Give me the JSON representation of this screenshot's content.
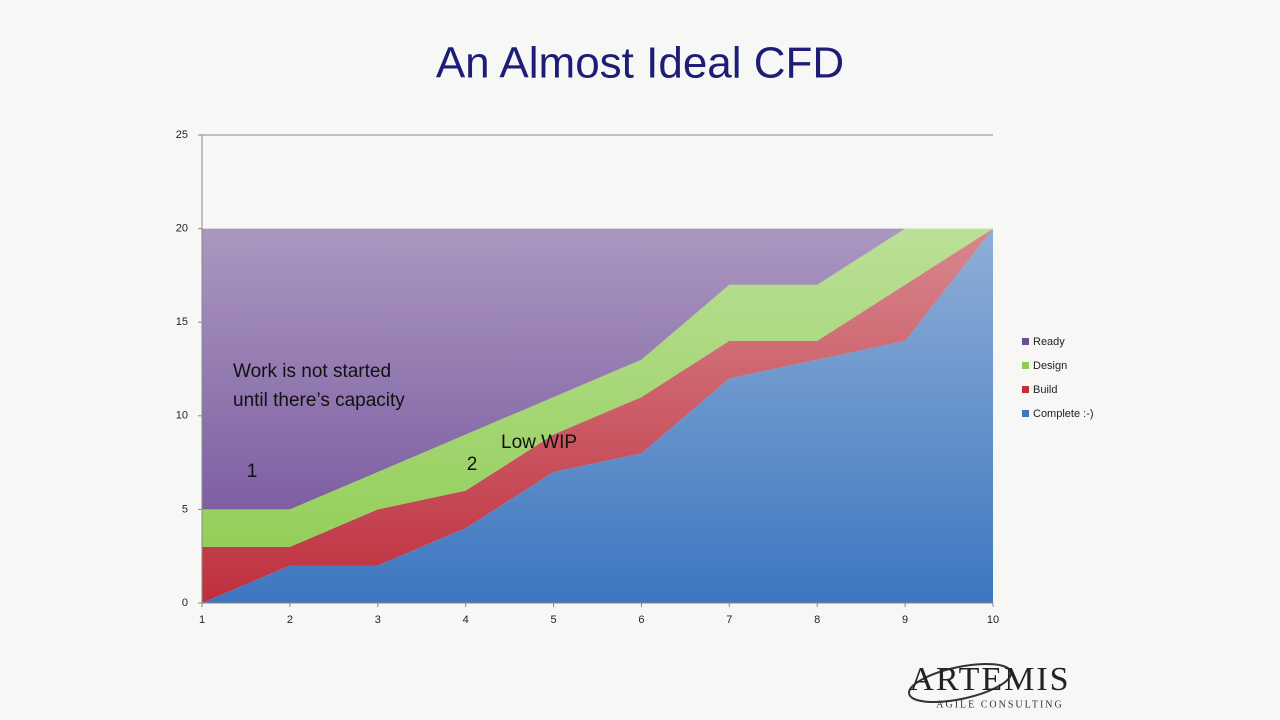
{
  "chart_data": {
    "type": "area",
    "stacked": true,
    "title": "An Almost Ideal CFD",
    "x": [
      1,
      2,
      3,
      4,
      5,
      6,
      7,
      8,
      9,
      10
    ],
    "xlim": [
      1,
      10
    ],
    "xticks": [
      1,
      2,
      3,
      4,
      5,
      6,
      7,
      8,
      9,
      10
    ],
    "ylim": [
      0,
      25
    ],
    "yticks": [
      0,
      5,
      10,
      15,
      20,
      25
    ],
    "grid": false,
    "legend": "right",
    "series": [
      {
        "name": "Ready",
        "color": "#6f4c98",
        "values": [
          15,
          15,
          13,
          11,
          9,
          7,
          3,
          3,
          0,
          0
        ]
      },
      {
        "name": "Design",
        "color": "#8ccc4e",
        "values": [
          2,
          2,
          2,
          3,
          2,
          2,
          3,
          3,
          3,
          0
        ]
      },
      {
        "name": "Build",
        "color": "#bf2f3e",
        "values": [
          3,
          1,
          3,
          2,
          2,
          3,
          2,
          1,
          3,
          0
        ]
      },
      {
        "name": "Complete :-)",
        "color": "#3d76c0",
        "values": [
          0,
          2,
          2,
          4,
          7,
          8,
          12,
          13,
          14,
          20
        ]
      }
    ],
    "annotations": [
      "Work is not started",
      "until there’s capacity",
      "1",
      "2",
      "Low WIP"
    ]
  },
  "logo": {
    "name": "ARTEMIS",
    "tagline": "AGILE CONSULTING"
  }
}
